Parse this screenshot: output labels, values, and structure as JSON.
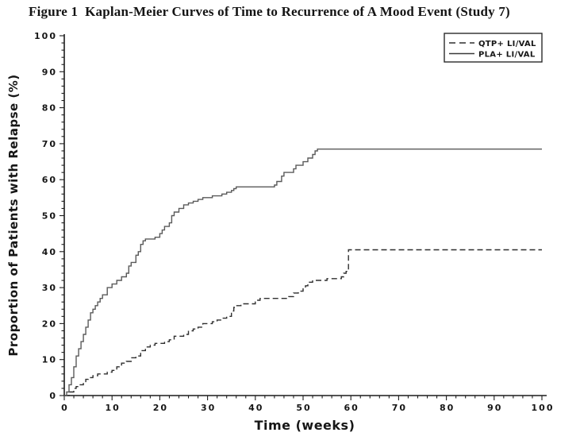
{
  "figure": {
    "title": "Figure 1  Kaplan-Meier Curves of Time to Recurrence of A Mood Event (Study 7)"
  },
  "colors": {
    "background": "#ffffff",
    "text": "#161616",
    "axis": "#1c1c1c",
    "series_dashed": "#2f2f2f",
    "series_solid": "#5a5a5a",
    "legend_border": "#2a2a2a"
  },
  "chart_data": {
    "type": "line",
    "subtype": "kaplan-meier-step",
    "title": "Figure 1  Kaplan-Meier Curves of Time to Recurrence of A Mood Event (Study 7)",
    "xlabel": "Time (weeks)",
    "ylabel": "Proportion of Patients with Relapse (%)",
    "xlim": [
      0,
      100
    ],
    "ylim": [
      0,
      100
    ],
    "xticks": [
      0,
      10,
      20,
      30,
      40,
      50,
      60,
      70,
      80,
      90,
      100
    ],
    "yticks": [
      0,
      10,
      20,
      30,
      40,
      50,
      60,
      70,
      80,
      90,
      100
    ],
    "x_minor_step": 2,
    "y_minor_step": 2,
    "grid": false,
    "legend_position": "top-right",
    "series": [
      {
        "name": "QTP+ LI/VAL",
        "line_style": "dashed",
        "step": true,
        "points": [
          [
            0,
            0
          ],
          [
            1,
            1
          ],
          [
            2,
            2
          ],
          [
            2.5,
            2.5
          ],
          [
            3,
            3
          ],
          [
            4,
            3.5
          ],
          [
            4.5,
            4.5
          ],
          [
            5,
            5
          ],
          [
            6,
            5.5
          ],
          [
            7,
            6
          ],
          [
            9,
            6.5
          ],
          [
            10,
            7
          ],
          [
            11,
            8
          ],
          [
            11.5,
            8.5
          ],
          [
            12,
            9
          ],
          [
            13,
            9.5
          ],
          [
            14,
            10.5
          ],
          [
            15,
            11
          ],
          [
            16,
            12.5
          ],
          [
            17,
            13.5
          ],
          [
            18,
            14
          ],
          [
            19,
            14.5
          ],
          [
            21,
            15
          ],
          [
            22,
            15.5
          ],
          [
            23,
            16.5
          ],
          [
            25,
            17
          ],
          [
            26,
            18
          ],
          [
            27,
            18.5
          ],
          [
            28,
            19
          ],
          [
            29,
            20
          ],
          [
            31,
            20.5
          ],
          [
            32,
            21
          ],
          [
            33,
            21.5
          ],
          [
            34,
            22
          ],
          [
            35,
            23.5
          ],
          [
            35.5,
            24.5
          ],
          [
            36,
            25
          ],
          [
            37,
            25.5
          ],
          [
            40,
            26
          ],
          [
            40.5,
            26.5
          ],
          [
            41,
            27
          ],
          [
            47,
            27.5
          ],
          [
            48,
            28.5
          ],
          [
            49,
            29
          ],
          [
            50,
            30
          ],
          [
            50.5,
            30.5
          ],
          [
            51,
            31.5
          ],
          [
            52,
            32
          ],
          [
            55,
            32.5
          ],
          [
            58,
            33
          ],
          [
            58.5,
            34
          ],
          [
            59,
            34.5
          ],
          [
            59.5,
            40.5
          ],
          [
            100,
            40.5
          ]
        ]
      },
      {
        "name": "PLA+ LI/VAL",
        "line_style": "solid",
        "step": true,
        "points": [
          [
            0,
            0
          ],
          [
            0.5,
            1
          ],
          [
            1,
            3
          ],
          [
            1.5,
            5
          ],
          [
            2,
            8
          ],
          [
            2.5,
            11
          ],
          [
            3,
            13
          ],
          [
            3.5,
            15
          ],
          [
            4,
            17
          ],
          [
            4.5,
            19
          ],
          [
            5,
            21
          ],
          [
            5.5,
            23
          ],
          [
            6,
            24
          ],
          [
            6.5,
            25
          ],
          [
            7,
            26
          ],
          [
            7.5,
            27
          ],
          [
            8,
            28
          ],
          [
            9,
            30
          ],
          [
            10,
            31
          ],
          [
            11,
            32
          ],
          [
            12,
            33
          ],
          [
            13,
            34
          ],
          [
            13.5,
            36
          ],
          [
            14,
            37
          ],
          [
            15,
            39
          ],
          [
            15.5,
            40
          ],
          [
            16,
            42
          ],
          [
            16.5,
            43
          ],
          [
            17,
            43.5
          ],
          [
            19,
            44
          ],
          [
            20,
            45
          ],
          [
            20.5,
            46
          ],
          [
            21,
            47
          ],
          [
            22,
            48
          ],
          [
            22.5,
            50
          ],
          [
            23,
            51
          ],
          [
            24,
            52
          ],
          [
            25,
            53
          ],
          [
            26,
            53.5
          ],
          [
            27,
            54
          ],
          [
            28,
            54.5
          ],
          [
            29,
            55
          ],
          [
            31,
            55.5
          ],
          [
            33,
            56
          ],
          [
            34,
            56.5
          ],
          [
            35,
            57
          ],
          [
            35.5,
            57.5
          ],
          [
            36,
            58
          ],
          [
            44,
            58.5
          ],
          [
            44.5,
            59.5
          ],
          [
            45.5,
            61
          ],
          [
            46,
            62
          ],
          [
            48,
            63
          ],
          [
            48.5,
            64
          ],
          [
            50,
            65
          ],
          [
            51,
            66
          ],
          [
            52,
            67
          ],
          [
            52.5,
            68
          ],
          [
            53,
            68.5
          ],
          [
            100,
            68.5
          ]
        ]
      }
    ]
  }
}
